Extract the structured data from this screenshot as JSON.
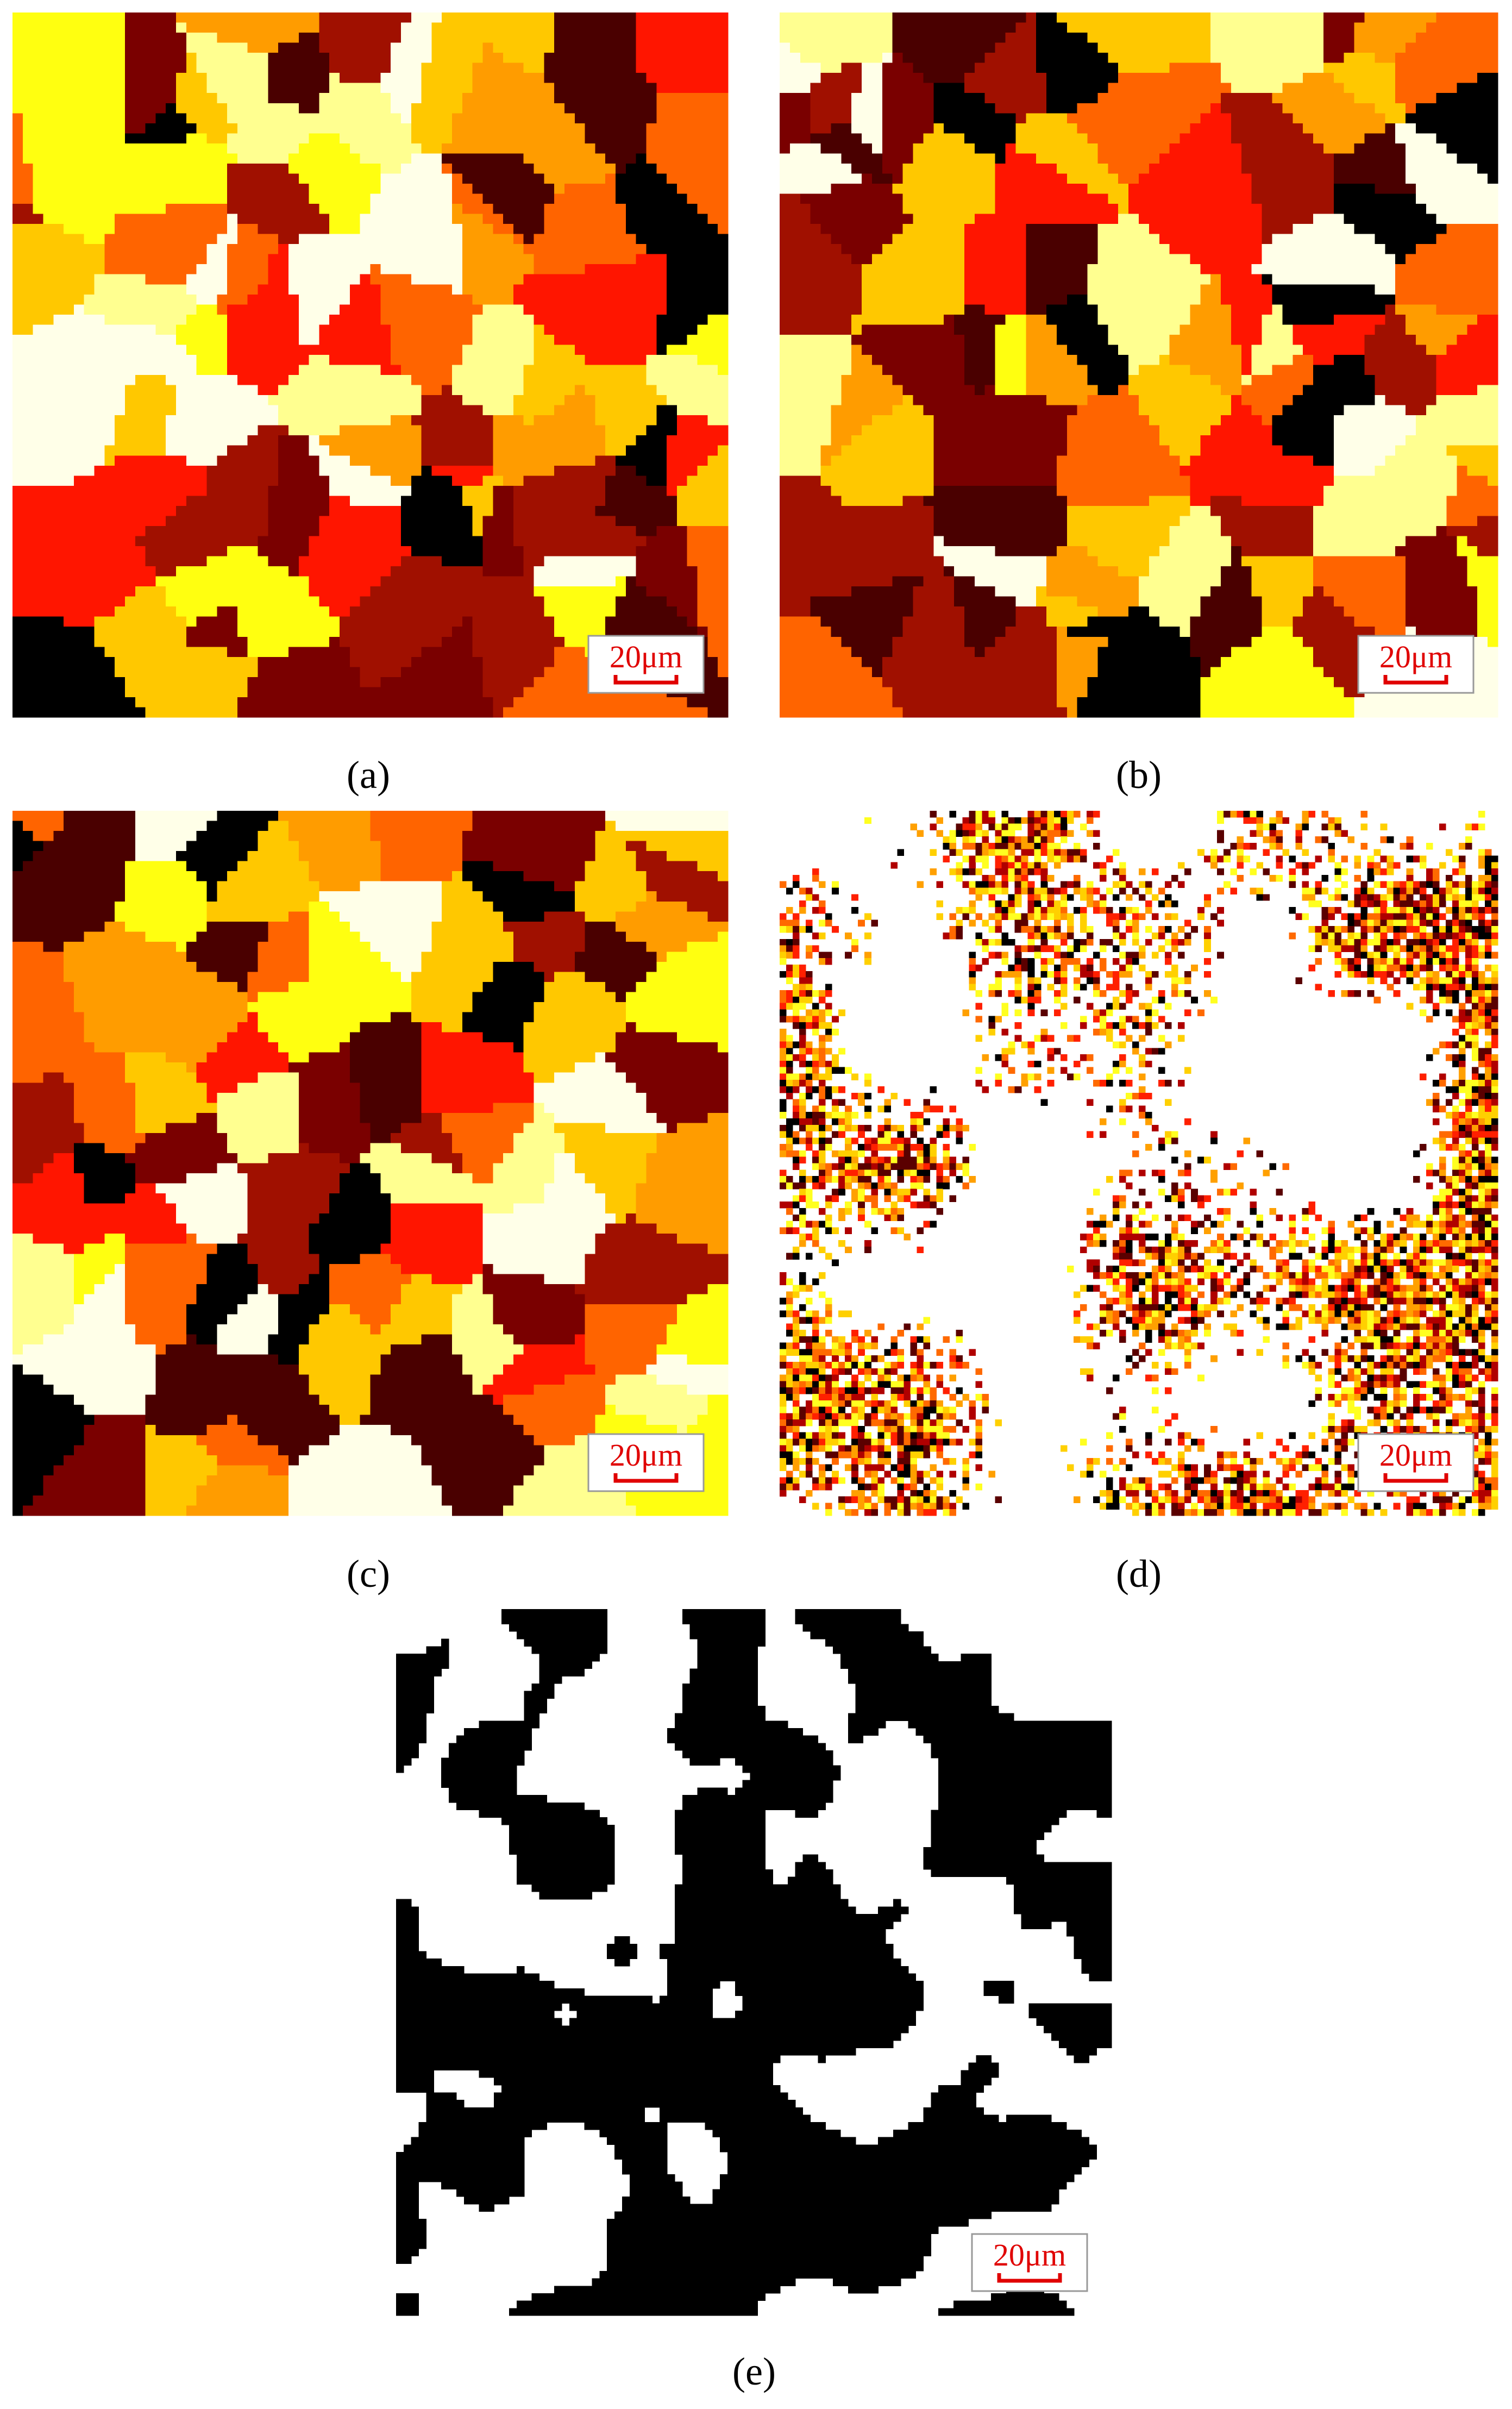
{
  "panels": [
    {
      "label": "(a)",
      "scale_bar": "20μm"
    },
    {
      "label": "(b)",
      "scale_bar": "20μm"
    },
    {
      "label": "(c)",
      "scale_bar": "20μm"
    },
    {
      "label": "(d)",
      "scale_bar": "20μm"
    },
    {
      "label": "(e)",
      "scale_bar": "20μm"
    }
  ]
}
